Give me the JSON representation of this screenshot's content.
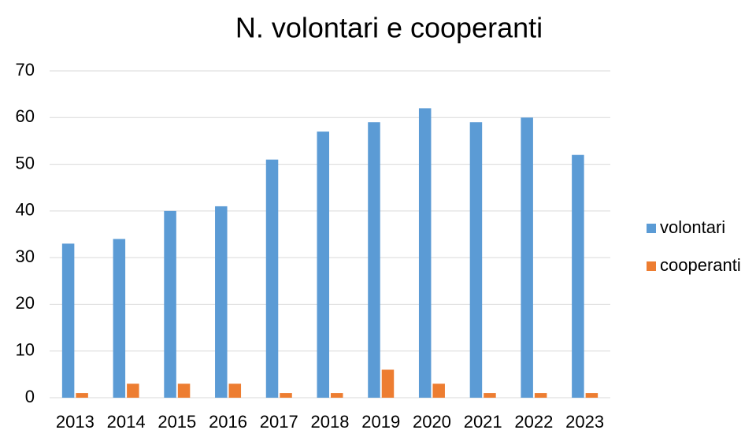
{
  "chart_data": {
    "type": "bar",
    "title": "N. volontari e cooperanti",
    "categories": [
      "2013",
      "2014",
      "2015",
      "2016",
      "2017",
      "2018",
      "2019",
      "2020",
      "2021",
      "2022",
      "2023"
    ],
    "series": [
      {
        "name": "volontari",
        "color": "#5b9bd5",
        "values": [
          33,
          34,
          40,
          41,
          51,
          57,
          59,
          62,
          59,
          60,
          52
        ]
      },
      {
        "name": "cooperanti",
        "color": "#ed7d31",
        "values": [
          1,
          3,
          3,
          3,
          1,
          1,
          6,
          3,
          1,
          1,
          1
        ]
      }
    ],
    "ylim": [
      0,
      70
    ],
    "yticks": [
      0,
      10,
      20,
      30,
      40,
      50,
      60,
      70
    ],
    "grid": true,
    "legend": "right"
  }
}
